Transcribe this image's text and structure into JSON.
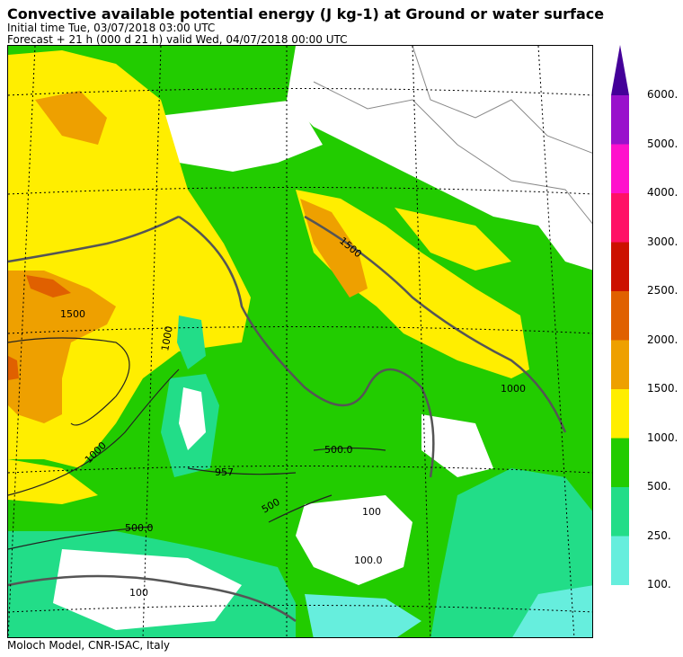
{
  "header": {
    "title": "Convective available potential energy (J kg-1) at Ground or water surface",
    "initial_time": "Initial time  Tue, 03/07/2018  03:00 UTC",
    "forecast": "Forecast  +  21 h  (000 d 21 h)  valid Wed, 04/07/2018 00:00 UTC"
  },
  "footer": {
    "credit": "Moloch Model, CNR-ISAC, Italy"
  },
  "colorbar": {
    "levels": [
      {
        "label": "100.",
        "color": "#66eedd"
      },
      {
        "label": "250.",
        "color": "#22dd88"
      },
      {
        "label": "500.",
        "color": "#22cc00"
      },
      {
        "label": "1000.",
        "color": "#ffee00"
      },
      {
        "label": "1500.",
        "color": "#eea000"
      },
      {
        "label": "2000.",
        "color": "#e06000"
      },
      {
        "label": "2500.",
        "color": "#cc1100"
      },
      {
        "label": "3000.",
        "color": "#ff1166"
      },
      {
        "label": "4000.",
        "color": "#ff11cc"
      },
      {
        "label": "5000.",
        "color": "#9911cc"
      },
      {
        "label": "6000.",
        "color": "#440099"
      }
    ]
  },
  "map_labels": {
    "l1500a": "1500",
    "l1500b": "1500",
    "l1000a": "1000",
    "l1000b": "1000",
    "l1000c": "1000",
    "l957": "957",
    "l500a": "500.0",
    "l500b": "500",
    "l500c": "500.0",
    "l100a": "100",
    "l100b": "100.0",
    "l100c": "100"
  }
}
